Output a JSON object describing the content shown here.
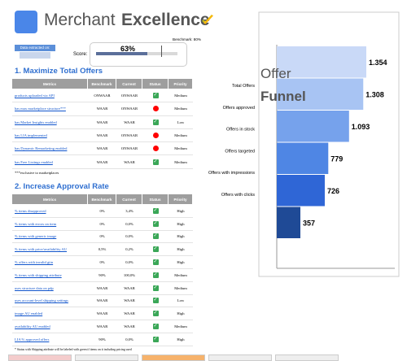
{
  "header": {
    "title_light": "Merchant",
    "title_bold": "Excellence",
    "extracted_label": "Data extracted on:"
  },
  "score": {
    "label": "Score:",
    "value": 63,
    "value_label": "63%",
    "benchmark": 80,
    "benchmark_label": "Benchmark: 80%"
  },
  "section1": {
    "title": "1. Maximize Total Offers",
    "columns": [
      "Metrics",
      "Benchmark",
      "Current",
      "Status",
      "Priority"
    ],
    "rows": [
      [
        "products uploaded via API",
        "ONWAAR",
        "ONWAAR",
        "green",
        "Medium"
      ],
      [
        "has max marketplace structure***",
        "WAAR",
        "ONWAAR",
        "red",
        "Medium"
      ],
      [
        "has Market Insights enabled",
        "WAAR",
        "WAAR",
        "green",
        "Low"
      ],
      [
        "has LIA implemented",
        "WAAR",
        "ONWAAR",
        "red",
        "Medium"
      ],
      [
        "has Dynamic Remarketing enabled",
        "WAAR",
        "ONWAAR",
        "red",
        "Medium"
      ],
      [
        "has Free Listings enabled",
        "WAAR",
        "WAAR",
        "green",
        "Medium"
      ]
    ],
    "note": "***exclusive to marketplaces"
  },
  "section2": {
    "title": "2. Increase Approval Rate",
    "columns": [
      "Metrics",
      "Benchmark",
      "Current",
      "Status",
      "Priority"
    ],
    "rows": [
      [
        "% items disapproved",
        "0%",
        "3,4%",
        "green",
        "High"
      ],
      [
        "% items with errors on item",
        "0%",
        "0,0%",
        "green",
        "High"
      ],
      [
        "% items with generic image",
        "0%",
        "0,0%",
        "green",
        "High"
      ],
      [
        "% items with price/availability AU",
        "0,5%",
        "0,2%",
        "green",
        "High"
      ],
      [
        "% offers with invalid gtin",
        "0%",
        "0,0%",
        "green",
        "High"
      ],
      [
        "% items with shipping attribute",
        "90%",
        "100,0%",
        "green",
        "Medium"
      ],
      [
        "uses structure data on pdp",
        "WAAR",
        "WAAR",
        "green",
        "Medium"
      ],
      [
        "uses account-level shipping settings",
        "WAAR",
        "WAAR",
        "green",
        "Low"
      ],
      [
        "image AU enabled",
        "WAAR",
        "WAAR",
        "green",
        "High"
      ],
      [
        "availability AU enabled",
        "WAAR",
        "WAAR",
        "green",
        "Medium"
      ],
      [
        "LIA % approved offers",
        "90%",
        "0,0%",
        "green",
        "High"
      ]
    ],
    "note": "* Status with Shipping attribute will be labeled with green if items on it including pricing used"
  },
  "chart_data": {
    "type": "funnel",
    "title_line1": "Offer",
    "title_line2": "Funnel",
    "categories": [
      "Total Offers",
      "Offers approved",
      "Offers in stock",
      "Offers targeted",
      "Offers with impressions",
      "Offers with clicks"
    ],
    "values": [
      1354,
      1308,
      1093,
      779,
      726,
      357
    ],
    "value_labels": [
      "1.354",
      "1.308",
      "1.093",
      "779",
      "726",
      "357"
    ],
    "colors": [
      "#c9d9f7",
      "#a8c4f3",
      "#76a2ec",
      "#4f86e4",
      "#2f66d6",
      "#1f4a96"
    ]
  }
}
